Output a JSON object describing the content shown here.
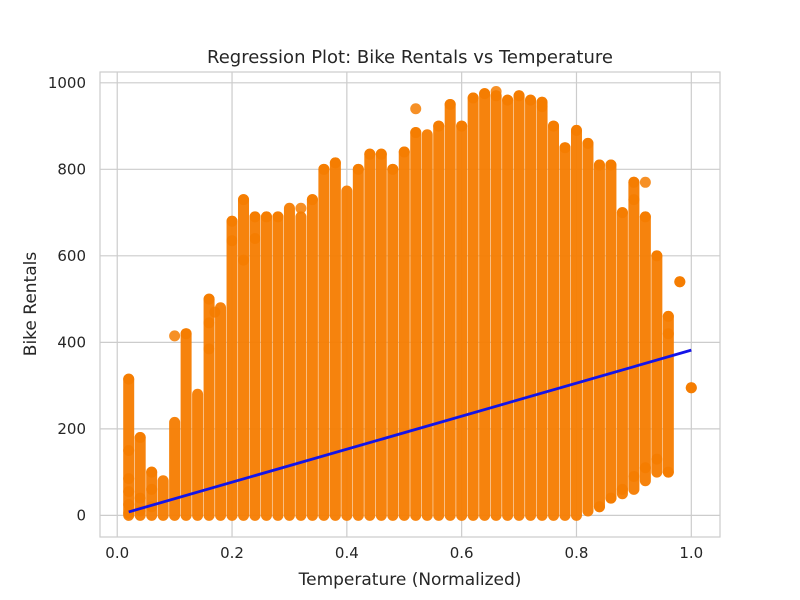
{
  "chart_data": {
    "type": "scatter",
    "title": "Regression Plot: Bike Rentals vs Temperature",
    "xlabel": "Temperature (Normalized)",
    "ylabel": "Bike Rentals",
    "xlim": [
      -0.03,
      1.05
    ],
    "ylim": [
      -50,
      1025
    ],
    "xticks": [
      0.0,
      0.2,
      0.4,
      0.6,
      0.8,
      1.0
    ],
    "xtick_labels": [
      "0.0",
      "0.2",
      "0.4",
      "0.6",
      "0.8",
      "1.0"
    ],
    "yticks": [
      0,
      200,
      400,
      600,
      800,
      1000
    ],
    "ytick_labels": [
      "0",
      "200",
      "400",
      "600",
      "800",
      "1000"
    ],
    "grid": true,
    "x_values": [
      0.02,
      0.04,
      0.06,
      0.08,
      0.1,
      0.12,
      0.14,
      0.16,
      0.18,
      0.2,
      0.22,
      0.24,
      0.26,
      0.28,
      0.3,
      0.32,
      0.34,
      0.36,
      0.38,
      0.4,
      0.42,
      0.44,
      0.46,
      0.48,
      0.5,
      0.52,
      0.54,
      0.56,
      0.58,
      0.6,
      0.62,
      0.64,
      0.66,
      0.68,
      0.7,
      0.72,
      0.74,
      0.76,
      0.78,
      0.8,
      0.82,
      0.84,
      0.86,
      0.88,
      0.9,
      0.92,
      0.94,
      0.96,
      0.98,
      1.0
    ],
    "y_min": [
      0,
      0,
      0,
      0,
      0,
      0,
      0,
      0,
      0,
      0,
      0,
      0,
      0,
      0,
      0,
      0,
      0,
      0,
      0,
      0,
      0,
      0,
      0,
      0,
      0,
      0,
      0,
      0,
      0,
      0,
      0,
      0,
      0,
      0,
      0,
      0,
      0,
      0,
      0,
      0,
      10,
      20,
      40,
      50,
      60,
      80,
      100,
      100,
      540,
      295
    ],
    "y_max": [
      315,
      180,
      100,
      80,
      215,
      420,
      280,
      500,
      480,
      680,
      730,
      690,
      690,
      690,
      710,
      690,
      730,
      800,
      815,
      750,
      800,
      835,
      835,
      800,
      840,
      885,
      880,
      900,
      950,
      900,
      965,
      975,
      970,
      960,
      970,
      960,
      955,
      900,
      850,
      890,
      860,
      810,
      810,
      700,
      770,
      690,
      600,
      460,
      540,
      295
    ],
    "series": [
      {
        "type": "scatter",
        "color": "#F57C00",
        "points": [
          [
            0.02,
            315
          ],
          [
            0.02,
            150
          ],
          [
            0.02,
            85
          ],
          [
            0.02,
            55
          ],
          [
            0.02,
            25
          ],
          [
            0.02,
            5
          ],
          [
            0.04,
            180
          ],
          [
            0.04,
            40
          ],
          [
            0.04,
            10
          ],
          [
            0.06,
            100
          ],
          [
            0.06,
            60
          ],
          [
            0.06,
            20
          ],
          [
            0.1,
            415
          ],
          [
            0.12,
            420
          ],
          [
            0.16,
            500
          ],
          [
            0.16,
            445
          ],
          [
            0.16,
            385
          ],
          [
            0.17,
            470
          ],
          [
            0.2,
            680
          ],
          [
            0.2,
            635
          ],
          [
            0.22,
            730
          ],
          [
            0.22,
            590
          ],
          [
            0.24,
            690
          ],
          [
            0.24,
            640
          ],
          [
            0.26,
            690
          ],
          [
            0.28,
            690
          ],
          [
            0.32,
            710
          ],
          [
            0.34,
            730
          ],
          [
            0.36,
            800
          ],
          [
            0.38,
            815
          ],
          [
            0.42,
            800
          ],
          [
            0.44,
            835
          ],
          [
            0.46,
            835
          ],
          [
            0.48,
            800
          ],
          [
            0.5,
            840
          ],
          [
            0.52,
            885
          ],
          [
            0.52,
            940
          ],
          [
            0.56,
            900
          ],
          [
            0.58,
            950
          ],
          [
            0.6,
            900
          ],
          [
            0.62,
            965
          ],
          [
            0.64,
            975
          ],
          [
            0.66,
            970
          ],
          [
            0.66,
            980
          ],
          [
            0.68,
            960
          ],
          [
            0.7,
            970
          ],
          [
            0.72,
            960
          ],
          [
            0.74,
            955
          ],
          [
            0.74,
            945
          ],
          [
            0.76,
            900
          ],
          [
            0.78,
            850
          ],
          [
            0.8,
            890
          ],
          [
            0.82,
            860
          ],
          [
            0.84,
            810
          ],
          [
            0.86,
            810
          ],
          [
            0.88,
            700
          ],
          [
            0.9,
            770
          ],
          [
            0.9,
            730
          ],
          [
            0.92,
            770
          ],
          [
            0.92,
            690
          ],
          [
            0.94,
            600
          ],
          [
            0.96,
            460
          ],
          [
            0.96,
            420
          ],
          [
            0.98,
            540
          ],
          [
            1.0,
            295
          ],
          [
            0.96,
            100
          ],
          [
            0.94,
            130
          ],
          [
            0.92,
            110
          ],
          [
            0.9,
            90
          ],
          [
            0.88,
            60
          ],
          [
            0.86,
            40
          ],
          [
            0.84,
            20
          ]
        ]
      },
      {
        "type": "line",
        "name": "",
        "color": "#1414E8",
        "x": [
          0.02,
          1.0
        ],
        "y": [
          8,
          382
        ]
      }
    ]
  }
}
